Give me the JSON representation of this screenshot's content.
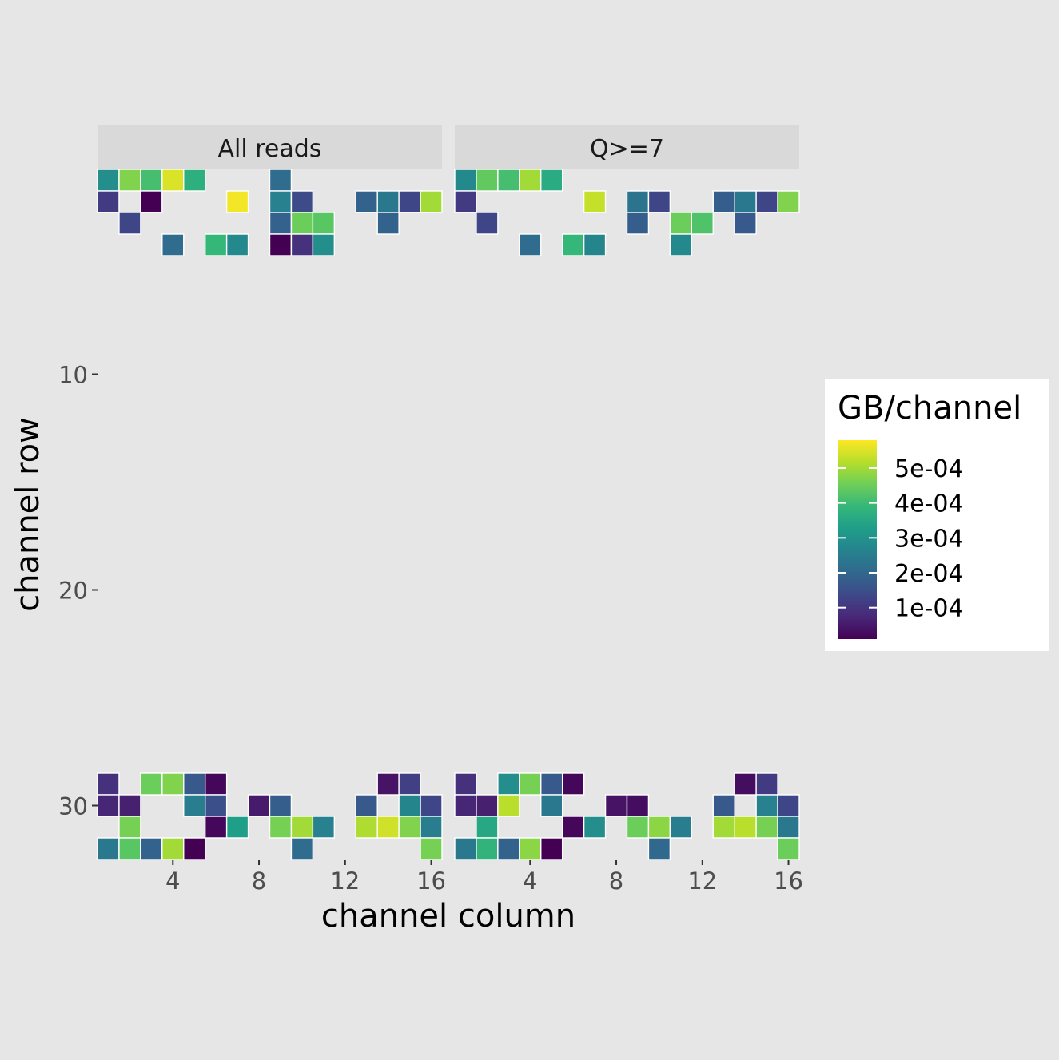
{
  "chart_data": {
    "type": "heatmap",
    "xlabel": "channel column",
    "ylabel": "channel row",
    "x_ticks": [
      4,
      8,
      12,
      16
    ],
    "y_ticks": [
      10,
      20,
      30
    ],
    "xlim": [
      0.5,
      16.5
    ],
    "ylim": [
      0.5,
      32.5
    ],
    "y_reversed": true,
    "legend": {
      "title": "GB/channel",
      "position": "right",
      "breaks": [
        0.0001,
        0.0002,
        0.0003,
        0.0004,
        0.0005
      ],
      "labels": [
        "1e-04",
        "2e-04",
        "3e-04",
        "4e-04",
        "5e-04"
      ],
      "limits": [
        1e-05,
        0.00058
      ],
      "palette": [
        "#440154",
        "#482878",
        "#3e4989",
        "#31688e",
        "#26828e",
        "#1f9e89",
        "#35b779",
        "#6ece58",
        "#b5de2b",
        "#fde725"
      ]
    },
    "facets": [
      {
        "name": "All reads",
        "cells": [
          [
            1,
            1,
            0.00029
          ],
          [
            2,
            1,
            0.00047
          ],
          [
            3,
            1,
            0.00041
          ],
          [
            4,
            1,
            0.00055
          ],
          [
            5,
            1,
            0.00037
          ],
          [
            9,
            1,
            0.00021
          ],
          [
            1,
            2,
            0.00011
          ],
          [
            3,
            2,
            1e-05
          ],
          [
            7,
            2,
            0.00057
          ],
          [
            9,
            2,
            0.00026
          ],
          [
            10,
            2,
            0.00014
          ],
          [
            13,
            2,
            0.00019
          ],
          [
            14,
            2,
            0.00024
          ],
          [
            15,
            2,
            0.00013
          ],
          [
            16,
            2,
            0.0005
          ],
          [
            2,
            3,
            0.00013
          ],
          [
            9,
            3,
            0.00019
          ],
          [
            10,
            3,
            0.00045
          ],
          [
            11,
            3,
            0.00043
          ],
          [
            14,
            3,
            0.00019
          ],
          [
            4,
            4,
            0.00021
          ],
          [
            6,
            4,
            0.00039
          ],
          [
            7,
            4,
            0.00028
          ],
          [
            9,
            4,
            1e-05
          ],
          [
            10,
            4,
            9e-05
          ],
          [
            11,
            4,
            0.00029
          ],
          [
            1,
            29,
            9e-05
          ],
          [
            3,
            29,
            0.00045
          ],
          [
            4,
            29,
            0.00047
          ],
          [
            5,
            29,
            0.00017
          ],
          [
            6,
            29,
            2e-05
          ],
          [
            14,
            29,
            4e-05
          ],
          [
            15,
            29,
            0.00012
          ],
          [
            1,
            30,
            7e-05
          ],
          [
            2,
            30,
            6e-05
          ],
          [
            5,
            30,
            0.00025
          ],
          [
            6,
            30,
            0.00015
          ],
          [
            8,
            30,
            5e-05
          ],
          [
            9,
            30,
            0.00018
          ],
          [
            13,
            30,
            0.00017
          ],
          [
            15,
            30,
            0.00027
          ],
          [
            16,
            30,
            0.00013
          ],
          [
            2,
            31,
            0.00046
          ],
          [
            6,
            31,
            2e-05
          ],
          [
            7,
            31,
            0.00033
          ],
          [
            9,
            31,
            0.00046
          ],
          [
            10,
            31,
            0.0005
          ],
          [
            11,
            31,
            0.00026
          ],
          [
            13,
            31,
            0.00051
          ],
          [
            14,
            31,
            0.00054
          ],
          [
            15,
            31,
            0.00047
          ],
          [
            16,
            31,
            0.00025
          ],
          [
            1,
            32,
            0.00024
          ],
          [
            2,
            32,
            0.00043
          ],
          [
            3,
            32,
            0.00019
          ],
          [
            4,
            32,
            0.0005
          ],
          [
            5,
            32,
            1e-05
          ],
          [
            10,
            32,
            0.00021
          ],
          [
            16,
            32,
            0.00046
          ]
        ]
      },
      {
        "name": "Q>=7",
        "cells": [
          [
            1,
            1,
            0.00028
          ],
          [
            2,
            1,
            0.00044
          ],
          [
            3,
            1,
            0.00041
          ],
          [
            4,
            1,
            0.0005
          ],
          [
            5,
            1,
            0.00036
          ],
          [
            1,
            2,
            0.00011
          ],
          [
            7,
            2,
            0.00053
          ],
          [
            9,
            2,
            0.00023
          ],
          [
            10,
            2,
            0.00013
          ],
          [
            13,
            2,
            0.00018
          ],
          [
            14,
            2,
            0.00024
          ],
          [
            15,
            2,
            0.00013
          ],
          [
            16,
            2,
            0.00047
          ],
          [
            2,
            3,
            0.00013
          ],
          [
            9,
            3,
            0.00018
          ],
          [
            11,
            3,
            0.00045
          ],
          [
            12,
            3,
            0.00042
          ],
          [
            14,
            3,
            0.00017
          ],
          [
            4,
            4,
            0.00021
          ],
          [
            6,
            4,
            0.00039
          ],
          [
            7,
            4,
            0.00027
          ],
          [
            11,
            4,
            0.00028
          ],
          [
            1,
            29,
            9e-05
          ],
          [
            3,
            29,
            0.00029
          ],
          [
            4,
            29,
            0.00046
          ],
          [
            5,
            29,
            0.00017
          ],
          [
            6,
            29,
            2e-05
          ],
          [
            14,
            29,
            3e-05
          ],
          [
            15,
            29,
            0.00011
          ],
          [
            1,
            30,
            7e-05
          ],
          [
            2,
            30,
            6e-05
          ],
          [
            3,
            30,
            0.00052
          ],
          [
            5,
            30,
            0.00024
          ],
          [
            8,
            30,
            4e-05
          ],
          [
            9,
            30,
            3e-05
          ],
          [
            13,
            30,
            0.00017
          ],
          [
            15,
            30,
            0.00026
          ],
          [
            16,
            30,
            0.00013
          ],
          [
            2,
            31,
            0.00035
          ],
          [
            6,
            31,
            2e-05
          ],
          [
            7,
            31,
            0.00029
          ],
          [
            9,
            31,
            0.00045
          ],
          [
            10,
            31,
            0.00048
          ],
          [
            11,
            31,
            0.00025
          ],
          [
            13,
            31,
            0.0005
          ],
          [
            14,
            31,
            0.00052
          ],
          [
            15,
            31,
            0.00046
          ],
          [
            16,
            31,
            0.00024
          ],
          [
            1,
            32,
            0.00024
          ],
          [
            2,
            32,
            0.00038
          ],
          [
            3,
            32,
            0.00019
          ],
          [
            4,
            32,
            0.00048
          ],
          [
            5,
            32,
            1e-05
          ],
          [
            10,
            32,
            0.0002
          ],
          [
            16,
            32,
            0.00045
          ]
        ]
      }
    ]
  }
}
